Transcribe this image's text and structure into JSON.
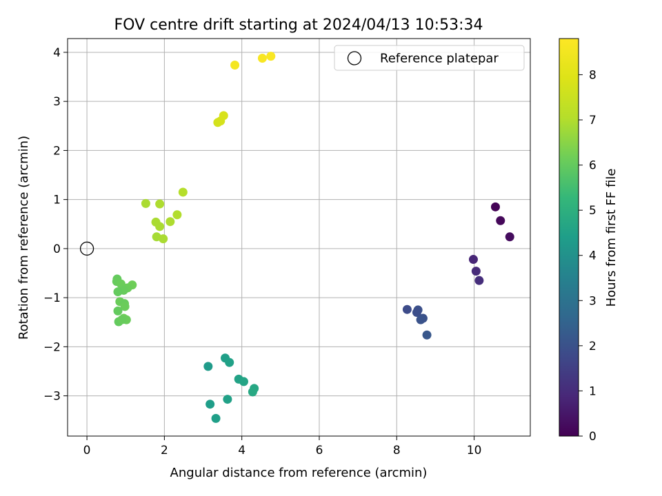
{
  "chart_data": {
    "type": "scatter",
    "title": "FOV centre drift starting at 2024/04/13 10:53:34",
    "xlabel": "Angular distance from reference (arcmin)",
    "ylabel": "Rotation from reference (arcmin)",
    "xlim": [
      -0.5,
      11.45
    ],
    "ylim": [
      -3.82,
      4.28
    ],
    "xticks": [
      "0",
      "2",
      "4",
      "6",
      "8",
      "10"
    ],
    "xtick_values": [
      0,
      2,
      4,
      6,
      8,
      10
    ],
    "yticks": [
      "−3",
      "−2",
      "−1",
      "0",
      "1",
      "2",
      "3",
      "4"
    ],
    "ytick_values": [
      -3,
      -2,
      -1,
      0,
      1,
      2,
      3,
      4
    ],
    "grid": true,
    "legend": {
      "placement": "top-right",
      "entries": [
        "Reference platepar"
      ]
    },
    "reference_point": {
      "x": 0,
      "y": 0,
      "label": "Reference platepar"
    },
    "colorbar": {
      "label": "Hours from first FF file",
      "colormap": "viridis",
      "range": [
        0,
        8.8
      ],
      "ticks": [
        "0",
        "1",
        "2",
        "3",
        "4",
        "5",
        "6",
        "7",
        "8"
      ],
      "tick_values": [
        0,
        1,
        2,
        3,
        4,
        5,
        6,
        7,
        8
      ]
    },
    "points": [
      {
        "x": 10.55,
        "y": 0.85,
        "c": 0.05
      },
      {
        "x": 10.68,
        "y": 0.57,
        "c": 0.15
      },
      {
        "x": 10.92,
        "y": 0.24,
        "c": 0.25
      },
      {
        "x": 9.98,
        "y": -0.22,
        "c": 0.85
      },
      {
        "x": 10.05,
        "y": -0.46,
        "c": 0.95
      },
      {
        "x": 10.13,
        "y": -0.65,
        "c": 1.05
      },
      {
        "x": 8.27,
        "y": -1.24,
        "c": 1.85
      },
      {
        "x": 8.55,
        "y": -1.25,
        "c": 1.95
      },
      {
        "x": 8.52,
        "y": -1.3,
        "c": 1.9
      },
      {
        "x": 8.68,
        "y": -1.42,
        "c": 2.0
      },
      {
        "x": 8.62,
        "y": -1.45,
        "c": 2.05
      },
      {
        "x": 8.78,
        "y": -1.76,
        "c": 2.15
      },
      {
        "x": 3.13,
        "y": -2.4,
        "c": 4.3
      },
      {
        "x": 3.57,
        "y": -2.23,
        "c": 4.45
      },
      {
        "x": 3.68,
        "y": -2.32,
        "c": 4.5
      },
      {
        "x": 3.92,
        "y": -2.66,
        "c": 4.55
      },
      {
        "x": 4.05,
        "y": -2.71,
        "c": 4.6
      },
      {
        "x": 4.32,
        "y": -2.85,
        "c": 4.7
      },
      {
        "x": 4.28,
        "y": -2.92,
        "c": 4.75
      },
      {
        "x": 3.18,
        "y": -3.17,
        "c": 4.4
      },
      {
        "x": 3.63,
        "y": -3.07,
        "c": 4.5
      },
      {
        "x": 3.33,
        "y": -3.46,
        "c": 4.45
      },
      {
        "x": 0.78,
        "y": -0.62,
        "c": 6.0
      },
      {
        "x": 0.77,
        "y": -0.67,
        "c": 6.05
      },
      {
        "x": 0.88,
        "y": -0.72,
        "c": 6.1
      },
      {
        "x": 1.17,
        "y": -0.74,
        "c": 6.15
      },
      {
        "x": 1.05,
        "y": -0.8,
        "c": 6.1
      },
      {
        "x": 0.95,
        "y": -0.85,
        "c": 6.05
      },
      {
        "x": 0.8,
        "y": -0.88,
        "c": 6.0
      },
      {
        "x": 0.85,
        "y": -1.08,
        "c": 6.1
      },
      {
        "x": 0.97,
        "y": -1.12,
        "c": 6.05
      },
      {
        "x": 0.98,
        "y": -1.18,
        "c": 6.1
      },
      {
        "x": 0.8,
        "y": -1.27,
        "c": 6.0
      },
      {
        "x": 0.95,
        "y": -1.42,
        "c": 6.15
      },
      {
        "x": 1.02,
        "y": -1.45,
        "c": 6.1
      },
      {
        "x": 0.82,
        "y": -1.49,
        "c": 6.0
      },
      {
        "x": 0.9,
        "y": -1.45,
        "c": 6.05
      },
      {
        "x": 1.52,
        "y": 0.92,
        "c": 6.9
      },
      {
        "x": 1.88,
        "y": 0.91,
        "c": 6.95
      },
      {
        "x": 2.48,
        "y": 1.15,
        "c": 7.05
      },
      {
        "x": 1.78,
        "y": 0.54,
        "c": 6.9
      },
      {
        "x": 2.33,
        "y": 0.69,
        "c": 7.0
      },
      {
        "x": 2.15,
        "y": 0.55,
        "c": 6.95
      },
      {
        "x": 1.88,
        "y": 0.45,
        "c": 6.9
      },
      {
        "x": 1.8,
        "y": 0.24,
        "c": 6.85
      },
      {
        "x": 1.97,
        "y": 0.2,
        "c": 6.9
      },
      {
        "x": 3.38,
        "y": 2.57,
        "c": 7.7
      },
      {
        "x": 3.45,
        "y": 2.6,
        "c": 7.75
      },
      {
        "x": 3.53,
        "y": 2.71,
        "c": 7.8
      },
      {
        "x": 3.82,
        "y": 3.74,
        "c": 8.55
      },
      {
        "x": 4.53,
        "y": 3.88,
        "c": 8.65
      },
      {
        "x": 4.75,
        "y": 3.92,
        "c": 8.7
      }
    ]
  }
}
